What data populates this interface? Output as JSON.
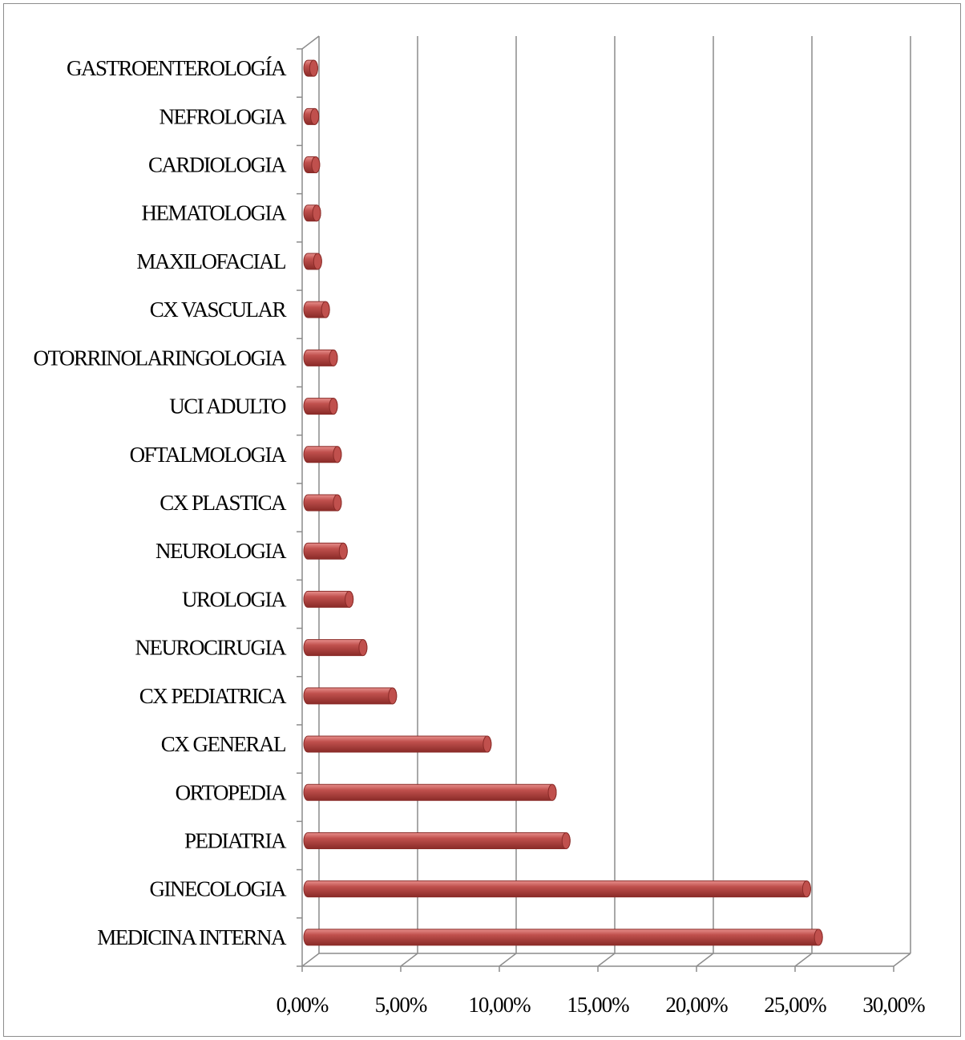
{
  "chart_data": {
    "type": "bar",
    "orientation": "horizontal",
    "style": "3d-cylinder",
    "categories": [
      "MEDICINA INTERNA",
      "GINECOLOGIA",
      "PEDIATRIA",
      "ORTOPEDIA",
      "CX GENERAL",
      "CX PEDIATRICA",
      "NEUROCIRUGIA",
      "UROLOGIA",
      "NEUROLOGIA",
      "CX PLASTICA",
      "OFTALMOLOGIA",
      "UCI ADULTO",
      "OTORRINOLARINGOLOGIA",
      "CX VASCULAR",
      "MAXILOFACIAL",
      "HEMATOLOGIA",
      "CARDIOLOGIA",
      "NEFROLOGIA",
      "GASTROENTEROLOGÍA"
    ],
    "values": [
      25.9,
      25.3,
      13.1,
      12.4,
      9.1,
      4.3,
      2.8,
      2.1,
      1.8,
      1.5,
      1.5,
      1.3,
      1.3,
      0.9,
      0.5,
      0.45,
      0.4,
      0.35,
      0.3
    ],
    "xlim": [
      0,
      30
    ],
    "xticks": [
      "0,00%",
      "5,00%",
      "10,00%",
      "15,00%",
      "20,00%",
      "25,00%",
      "30,00%"
    ],
    "xlabel": "",
    "ylabel": "",
    "title": "",
    "grid": "vertical",
    "legend": "none",
    "colors": {
      "bar": "#c0504d",
      "bar_light": "#e8908d",
      "bar_dark": "#8a2b28",
      "grid": "#8c8c8c",
      "frame": "#8c8c8c"
    }
  }
}
